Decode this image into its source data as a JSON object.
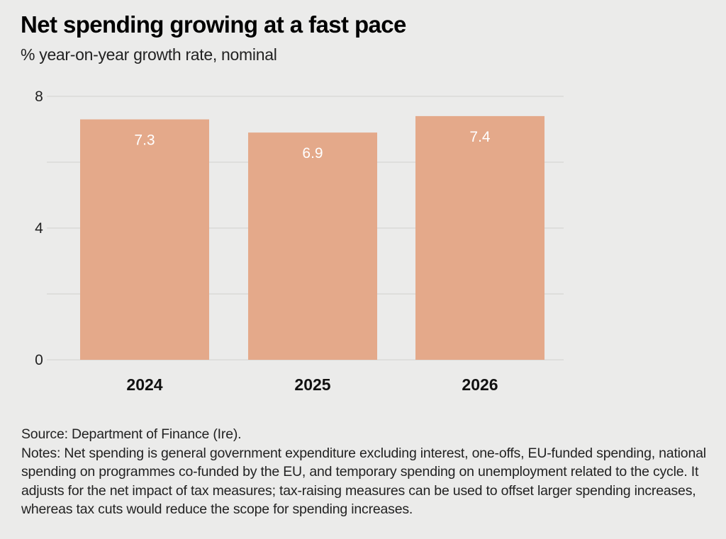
{
  "title": "Net spending growing at a fast pace",
  "subtitle": "% year-on-year growth rate, nominal",
  "source": "Source: Department of Finance (Ire).",
  "notes": "Notes: Net spending is general government expenditure excluding interest, one-offs, EU-funded spending, national spending on programmes co-funded by the EU, and temporary spending on unemployment related to the cycle. It adjusts for the net impact of tax measures; tax-raising measures can be used to offset larger spending increases, whereas tax cuts would reduce the scope for spending increases.",
  "colors": {
    "bar": "#e4a98a",
    "grid": "#d9d9d8",
    "bar_label": "#ffffff",
    "background": "#ebebea"
  },
  "chart_data": {
    "type": "bar",
    "title": "Net spending growing at a fast pace",
    "subtitle": "% year-on-year growth rate, nominal",
    "categories": [
      "2024",
      "2025",
      "2026"
    ],
    "values": [
      7.3,
      6.9,
      7.4
    ],
    "data_labels": [
      "7.3",
      "6.9",
      "7.4"
    ],
    "xlabel": "",
    "ylabel": "",
    "ylim": [
      0,
      8
    ],
    "yticks": [
      0,
      4,
      8
    ],
    "ytick_labels": [
      "0",
      "4",
      "8"
    ],
    "gridlines": [
      0,
      2,
      4,
      6,
      8
    ],
    "grid": true,
    "legend": "none"
  }
}
